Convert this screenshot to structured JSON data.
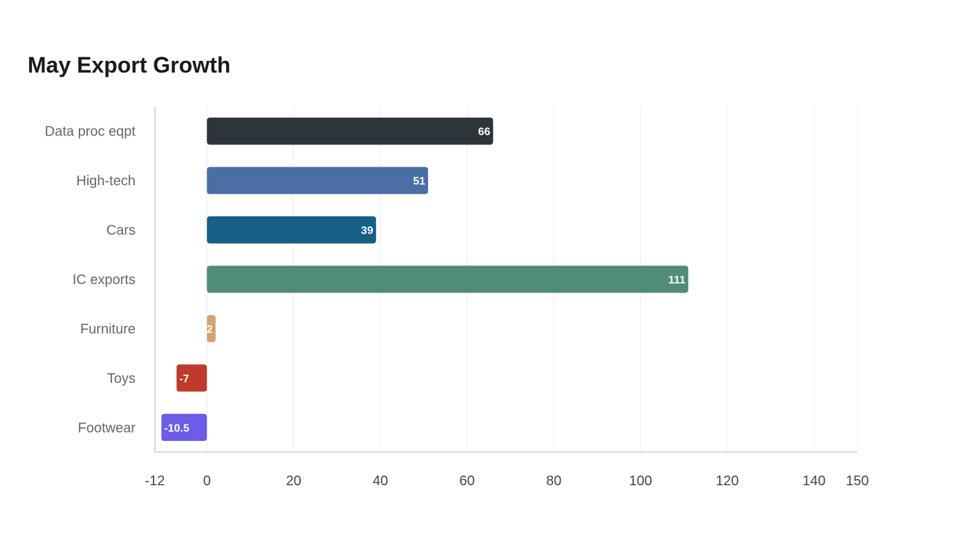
{
  "title": "May Export Growth",
  "chart_data": {
    "type": "bar",
    "orientation": "horizontal",
    "title": "May Export Growth",
    "xlabel": "",
    "ylabel": "",
    "xlim": [
      -12,
      150
    ],
    "x_ticks": [
      -12,
      0,
      20,
      40,
      60,
      80,
      100,
      120,
      140,
      150
    ],
    "grid": true,
    "categories": [
      "Data proc eqpt",
      "High-tech",
      "Cars",
      "IC exports",
      "Furniture",
      "Toys",
      "Footwear"
    ],
    "values": [
      66,
      51,
      39,
      111,
      2,
      -7,
      -10.5
    ],
    "colors": [
      "#2c3539",
      "#4a6fa5",
      "#166088",
      "#4f8c7a",
      "#d4a373",
      "#c0392b",
      "#6c5ce7"
    ]
  }
}
